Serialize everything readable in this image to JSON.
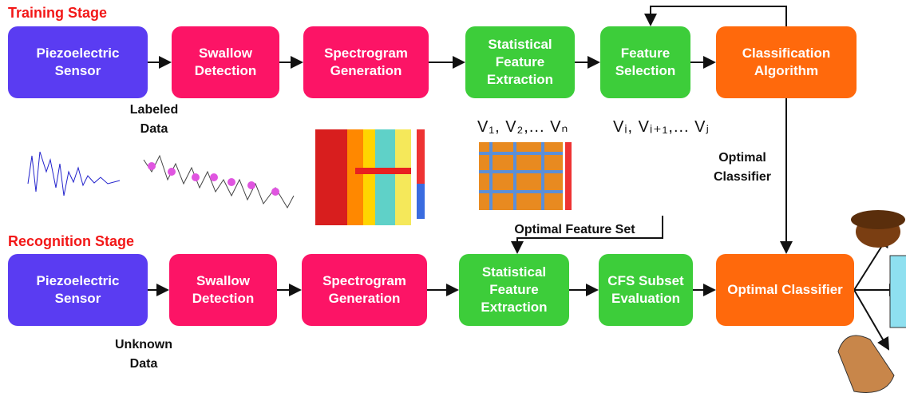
{
  "stages": {
    "training": "Training Stage",
    "recognition": "Recognition Stage"
  },
  "training_nodes": [
    "Piezoelectric Sensor",
    "Swallow Detection",
    "Spectrogram Generation",
    "Statistical Feature Extraction",
    "Feature Selection",
    "Classification Algorithm"
  ],
  "recognition_nodes": [
    "Piezoelectric Sensor",
    "Swallow Detection",
    "Spectrogram Generation",
    "Statistical Feature Extraction",
    "CFS Subset Evaluation",
    "Optimal Classifier"
  ],
  "annotations": {
    "labeled_data": "Labeled Data",
    "unknown_data": "Unknown Data",
    "optimal_classifier": "Optimal Classifier",
    "optimal_feature_set": "Optimal Feature Set",
    "all_features": "V₁, V₂,... Vₙ",
    "selected_features": "Vᵢ, Vᵢ₊₁,... Vⱼ"
  }
}
